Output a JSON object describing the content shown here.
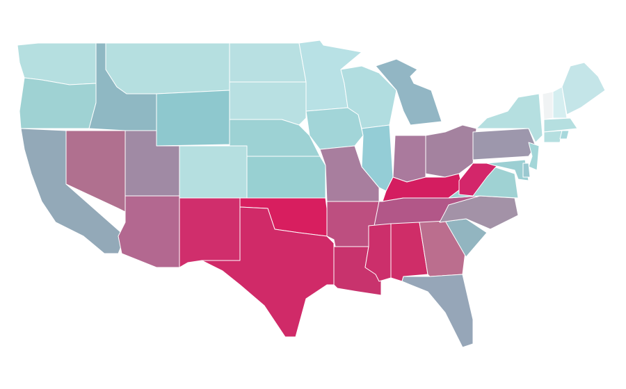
{
  "map": {
    "regions": [
      {
        "color": "#b5dfe0"
      },
      {
        "color": "#9fd2d3"
      },
      {
        "color": "#93a9b8"
      },
      {
        "color": "#b0708f"
      },
      {
        "color": "#8fb8c3"
      },
      {
        "color": "#b5dfe0"
      },
      {
        "color": "#8ec8ce"
      },
      {
        "color": "#a08aa4"
      },
      {
        "color": "#b36890"
      },
      {
        "color": "#b5dfe0"
      },
      {
        "color": "#d02e6c"
      },
      {
        "color": "#b8e0e2"
      },
      {
        "color": "#b8e0e2"
      },
      {
        "color": "#9dd2d4"
      },
      {
        "color": "#98d0d2"
      },
      {
        "color": "#d81e5f"
      },
      {
        "color": "#d02a68"
      },
      {
        "color": "#b8e1e5"
      },
      {
        "color": "#a2d5d8"
      },
      {
        "color": "#a87e9e"
      },
      {
        "color": "#bd4f80"
      },
      {
        "color": "#c8336d"
      },
      {
        "color": "#b1dde0"
      },
      {
        "color": "#94cdd6"
      },
      {
        "color": "#92b6c4"
      },
      {
        "color": "#aa7a9d"
      },
      {
        "color": "#a4829f"
      },
      {
        "color": "#d41d60"
      },
      {
        "color": "#b25788"
      },
      {
        "color": "#cc2f6b"
      },
      {
        "color": "#cf2d68"
      },
      {
        "color": "#bb6e8e"
      },
      {
        "color": "#96a6b8"
      },
      {
        "color": "#92b5c0"
      },
      {
        "color": "#a392a7"
      },
      {
        "color": "#9fd2d3"
      },
      {
        "color": "#d3266a"
      },
      {
        "color": "#9d97ac"
      },
      {
        "color": "#b5dfe0"
      },
      {
        "color": "#f0f3f4"
      },
      {
        "color": "#d5eef0"
      },
      {
        "color": "#c4e5e8"
      },
      {
        "color": "#b5dfe0"
      },
      {
        "color": "#b5dfe0"
      },
      {
        "color": "#a8d8dc"
      },
      {
        "color": "#a3d6d8"
      },
      {
        "color": "#9ccfd3"
      },
      {
        "color": "#9ac8d0"
      }
    ]
  }
}
